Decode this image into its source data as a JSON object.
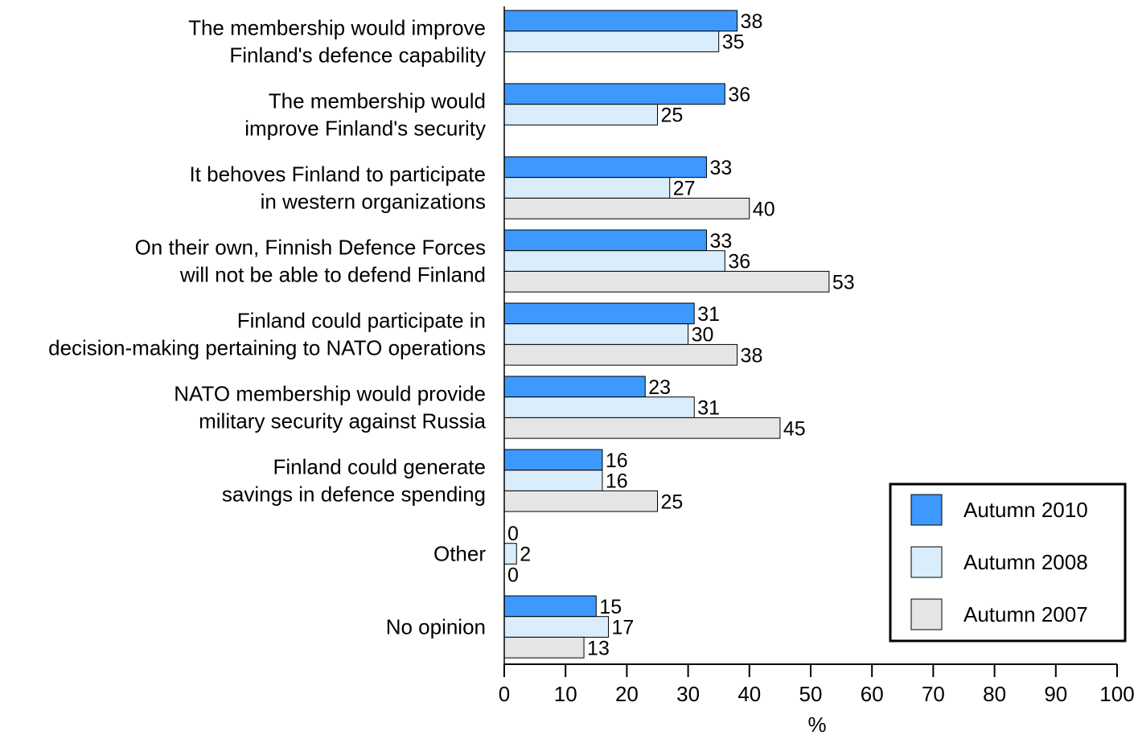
{
  "chart_data": {
    "type": "bar",
    "orientation": "horizontal",
    "categories": [
      [
        "The membership would improve",
        "Finland's defence capability"
      ],
      [
        "The membership would",
        "improve Finland's security"
      ],
      [
        "It behoves Finland to participate",
        "in western organizations"
      ],
      [
        "On their own, Finnish Defence Forces",
        "will not be able to defend Finland"
      ],
      [
        "Finland could participate in",
        "decision-making pertaining to NATO operations"
      ],
      [
        "NATO membership would provide",
        "military security against Russia"
      ],
      [
        "Finland could generate",
        "savings in defence spending"
      ],
      [
        "Other"
      ],
      [
        "No opinion"
      ]
    ],
    "series": [
      {
        "name": "Autumn 2010",
        "color": "#3d99fd",
        "values": [
          38,
          36,
          33,
          33,
          31,
          23,
          16,
          0,
          15
        ]
      },
      {
        "name": "Autumn 2008",
        "color": "#d9edfd",
        "values": [
          35,
          25,
          27,
          36,
          30,
          31,
          16,
          2,
          17
        ]
      },
      {
        "name": "Autumn 2007",
        "color": "#e5e5e5",
        "values": [
          null,
          null,
          40,
          53,
          38,
          45,
          25,
          0,
          13
        ]
      }
    ],
    "xlabel": "%",
    "xlim": [
      0,
      100
    ],
    "xticks": [
      0,
      10,
      20,
      30,
      40,
      50,
      60,
      70,
      80,
      90,
      100
    ],
    "grid": false,
    "legend_position": "bottom-right"
  }
}
